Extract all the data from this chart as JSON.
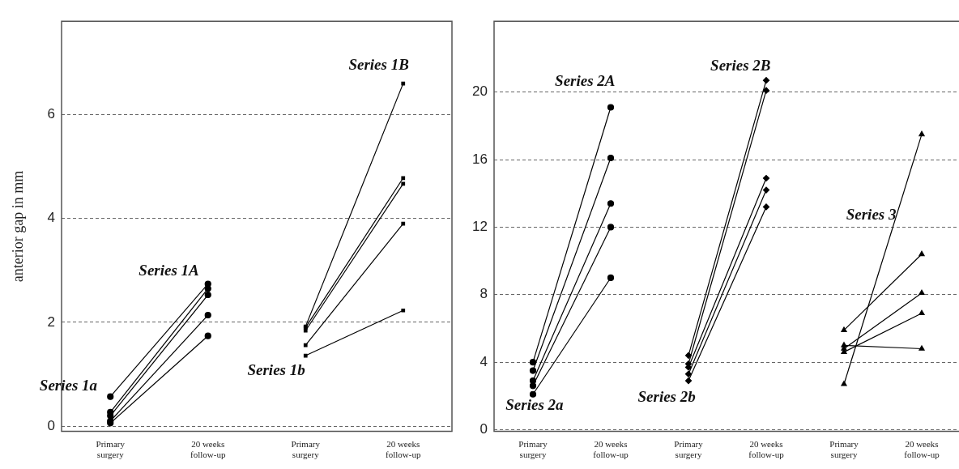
{
  "chart_data": [
    {
      "type": "line",
      "ylabel": "anterior gap in mm",
      "categories": [
        "Primary surgery",
        "20 weeks follow-up",
        "Primary surgery",
        "20 weeks follow-up"
      ],
      "ylim": [
        -0.1,
        7.8
      ],
      "yticks": [
        0,
        2,
        4,
        6
      ],
      "grid": "y",
      "line_style": "solid",
      "annotations": [
        "Series 1a",
        "Series 1A",
        "Series 1b",
        "Series 1B"
      ],
      "series": [
        {
          "color": "#000000",
          "marker": "circle",
          "values": [
            0.57,
            2.74,
            null,
            null
          ]
        },
        {
          "color": "#000000",
          "marker": "circle",
          "values": [
            0.27,
            2.65,
            null,
            null
          ]
        },
        {
          "color": "#000000",
          "marker": "circle",
          "values": [
            0.2,
            2.53,
            null,
            null
          ]
        },
        {
          "color": "#000000",
          "marker": "circle",
          "values": [
            0.1,
            2.14,
            null,
            null
          ]
        },
        {
          "color": "#000000",
          "marker": "circle",
          "values": [
            0.06,
            1.74,
            null,
            null
          ]
        },
        {
          "color": "#000000",
          "marker": "square",
          "values": [
            null,
            null,
            1.92,
            6.6
          ]
        },
        {
          "color": "#000000",
          "marker": "square",
          "values": [
            null,
            null,
            1.9,
            4.78
          ]
        },
        {
          "color": "#000000",
          "marker": "square",
          "values": [
            null,
            null,
            1.84,
            4.67
          ]
        },
        {
          "color": "#000000",
          "marker": "square",
          "values": [
            null,
            null,
            1.56,
            3.9
          ]
        },
        {
          "color": "#000000",
          "marker": "square",
          "values": [
            null,
            null,
            1.36,
            2.23
          ]
        }
      ]
    },
    {
      "type": "line",
      "categories": [
        "Primary surgery",
        "20 weeks follow-up",
        "Primary surgery",
        "20 weeks follow-up",
        "Primary surgery",
        "20 weeks follow-up"
      ],
      "ylim": [
        -0.1,
        24.2
      ],
      "yticks": [
        0,
        4,
        8,
        12,
        16,
        20
      ],
      "grid": "y",
      "line_style": "solid",
      "annotations": [
        "Series 2a",
        "Series 2A",
        "Series 2b",
        "Series 2B",
        "Series 3"
      ],
      "series": [
        {
          "color": "#000000",
          "marker": "circle",
          "values": [
            4.0,
            19.1,
            null,
            null,
            null,
            null
          ]
        },
        {
          "color": "#000000",
          "marker": "circle",
          "values": [
            3.5,
            16.1,
            null,
            null,
            null,
            null
          ]
        },
        {
          "color": "#000000",
          "marker": "circle",
          "values": [
            2.9,
            13.4,
            null,
            null,
            null,
            null
          ]
        },
        {
          "color": "#000000",
          "marker": "circle",
          "values": [
            2.6,
            12.0,
            null,
            null,
            null,
            null
          ]
        },
        {
          "color": "#000000",
          "marker": "circle",
          "values": [
            2.1,
            9.0,
            null,
            null,
            null,
            null
          ]
        },
        {
          "color": "#000000",
          "marker": "diamond",
          "values": [
            null,
            null,
            4.4,
            20.7,
            null,
            null
          ]
        },
        {
          "color": "#000000",
          "marker": "diamond",
          "values": [
            null,
            null,
            3.9,
            20.1,
            null,
            null
          ]
        },
        {
          "color": "#000000",
          "marker": "diamond",
          "values": [
            null,
            null,
            3.7,
            14.9,
            null,
            null
          ]
        },
        {
          "color": "#000000",
          "marker": "diamond",
          "values": [
            null,
            null,
            3.3,
            14.2,
            null,
            null
          ]
        },
        {
          "color": "#000000",
          "marker": "diamond",
          "values": [
            null,
            null,
            2.9,
            13.2,
            null,
            null
          ]
        },
        {
          "color": "#000000",
          "marker": "triangle",
          "values": [
            null,
            null,
            null,
            null,
            2.7,
            17.5
          ]
        },
        {
          "color": "#000000",
          "marker": "triangle",
          "values": [
            null,
            null,
            null,
            null,
            5.9,
            10.4
          ]
        },
        {
          "color": "#000000",
          "marker": "triangle",
          "values": [
            null,
            null,
            null,
            null,
            5.0,
            4.8
          ]
        },
        {
          "color": "#000000",
          "marker": "triangle",
          "values": [
            null,
            null,
            null,
            null,
            4.8,
            8.1
          ]
        },
        {
          "color": "#000000",
          "marker": "triangle",
          "values": [
            null,
            null,
            null,
            null,
            4.6,
            6.9
          ]
        }
      ]
    }
  ]
}
